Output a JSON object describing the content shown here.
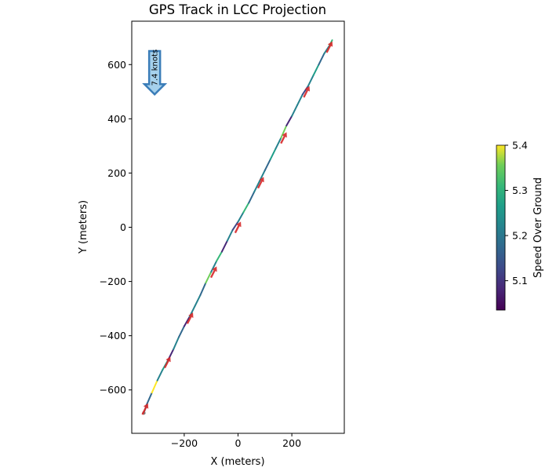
{
  "chart_data": {
    "type": "line",
    "title": "GPS Track in LCC Projection",
    "xlabel": "X (meters)",
    "ylabel": "Y (meters)",
    "xlim": [
      -395,
      395
    ],
    "ylim": [
      -760,
      760
    ],
    "xticks": [
      -200,
      0,
      200
    ],
    "yticks": [
      600,
      400,
      200,
      0,
      -200,
      -400,
      -600
    ],
    "xtick_labels": [
      "−200",
      "0",
      "200"
    ],
    "ytick_labels": [
      "600",
      "400",
      "200",
      "0",
      "−200",
      "−400",
      "−600"
    ],
    "grid": false,
    "track": {
      "x": [
        -350,
        -340,
        -320,
        -300,
        -280,
        -260,
        -240,
        -220,
        -200,
        -180,
        -160,
        -140,
        -120,
        -100,
        -80,
        -60,
        -40,
        -20,
        0,
        20,
        40,
        60,
        80,
        100,
        120,
        140,
        160,
        180,
        200,
        220,
        240,
        260,
        280,
        300,
        320,
        340,
        350
      ],
      "y": [
        -685,
        -655,
        -610,
        -565,
        -525,
        -490,
        -450,
        -405,
        -365,
        -330,
        -290,
        -250,
        -205,
        -165,
        -125,
        -90,
        -50,
        -10,
        20,
        55,
        90,
        130,
        170,
        210,
        250,
        290,
        330,
        375,
        410,
        450,
        490,
        520,
        560,
        600,
        640,
        670,
        690
      ],
      "speed": [
        5.2,
        5.18,
        5.4,
        5.22,
        5.25,
        5.1,
        5.2,
        5.15,
        5.08,
        5.22,
        5.2,
        5.15,
        5.35,
        5.2,
        5.3,
        5.1,
        5.2,
        5.12,
        5.2,
        5.3,
        5.18,
        5.22,
        5.2,
        5.15,
        5.25,
        5.2,
        5.35,
        5.1,
        5.2,
        5.22,
        5.12,
        5.2,
        5.25,
        5.18,
        5.2,
        5.3,
        5.2
      ]
    },
    "direction_arrows": [
      {
        "x": -345,
        "y": -670
      },
      {
        "x": -262,
        "y": -498
      },
      {
        "x": -178,
        "y": -335
      },
      {
        "x": -90,
        "y": -165
      },
      {
        "x": 0,
        "y": 0
      },
      {
        "x": 85,
        "y": 165
      },
      {
        "x": 170,
        "y": 330
      },
      {
        "x": 255,
        "y": 500
      },
      {
        "x": 340,
        "y": 665
      }
    ],
    "wind_arrow": {
      "label": "7.4 knots",
      "x": -310,
      "y_from": 650,
      "y_to": 490
    },
    "colorbar": {
      "label": "Speed Over Ground",
      "min": 5.035,
      "max": 5.4,
      "ticks": [
        5.1,
        5.2,
        5.3,
        5.4
      ],
      "tick_labels": [
        "5.1",
        "5.2",
        "5.3",
        "5.4"
      ],
      "colormap": "viridis"
    },
    "colors": {
      "arrow_fill": "#d62728",
      "wind_fill": "#a6d1ec",
      "wind_edge": "#3b7db8",
      "start_marker": "#7f7f7f"
    }
  }
}
